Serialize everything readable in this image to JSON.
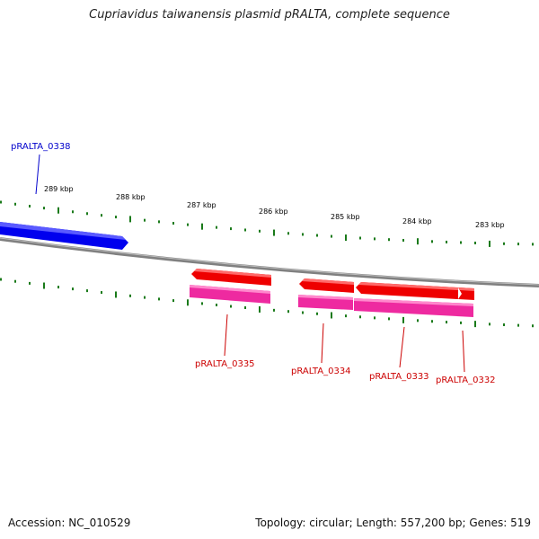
{
  "title": "Cupriavidus taiwanensis plasmid pRALTA, complete sequence",
  "footer": {
    "accession": "Accession: NC_010529",
    "summary": "Topology: circular; Length: 557,200 bp; Genes: 519"
  },
  "colors": {
    "backbone": "#808080",
    "tick": "#1a7a1a",
    "forward_gene": "#0000ee",
    "reverse_gene": "#ee0000",
    "reverse_cds": "#ee2aa0",
    "forward_label": "#0000cc",
    "reverse_label": "#cc0000"
  },
  "scale_labels": [
    "289 kbp",
    "288 kbp",
    "287 kbp",
    "286 kbp",
    "285 kbp",
    "284 kbp",
    "283 kbp"
  ],
  "genes": [
    {
      "label": "pRALTA_0338",
      "strand": "forward"
    },
    {
      "label": "pRALTA_0335",
      "strand": "reverse"
    },
    {
      "label": "pRALTA_0334",
      "strand": "reverse"
    },
    {
      "label": "pRALTA_0333",
      "strand": "reverse"
    },
    {
      "label": "pRALTA_0332",
      "strand": "reverse"
    }
  ]
}
